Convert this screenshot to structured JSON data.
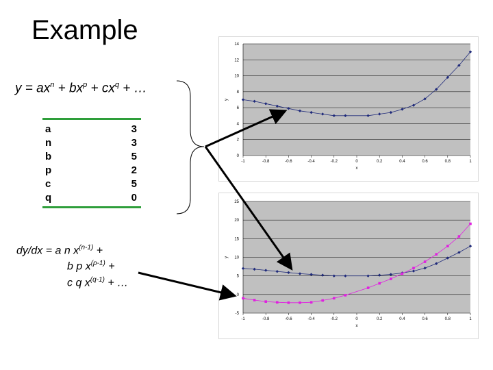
{
  "slide": {
    "title": "Example",
    "formula_parts": [
      "y = ax",
      "n",
      " + bx",
      "p",
      " + cx",
      "q",
      " + …"
    ],
    "params": [
      {
        "name": "a",
        "value": "3"
      },
      {
        "name": "n",
        "value": "3"
      },
      {
        "name": "b",
        "value": "5"
      },
      {
        "name": "p",
        "value": "2"
      },
      {
        "name": "c",
        "value": "5"
      },
      {
        "name": "q",
        "value": "0"
      }
    ],
    "derivative": {
      "line1": [
        "dy/dx = ",
        "a n x",
        "(n-1)",
        " +"
      ],
      "line2": [
        "b p x",
        "(p-1)",
        " +"
      ],
      "line3": [
        "c q x",
        "(q-1)",
        " + …"
      ]
    }
  },
  "chart_data": [
    {
      "type": "line",
      "title": "",
      "xlabel": "x",
      "ylabel": "y",
      "xlim": [
        -1,
        1
      ],
      "ylim": [
        0,
        14
      ],
      "xticks": [
        -1,
        -0.8,
        -0.6,
        -0.4,
        -0.2,
        0,
        0.2,
        0.4,
        0.6,
        0.8,
        1
      ],
      "yticks": [
        0,
        2,
        4,
        6,
        8,
        10,
        12,
        14
      ],
      "grid": true,
      "legend": "none",
      "plot_bg": "#c0c0c0",
      "x": [
        -1,
        -0.9,
        -0.8,
        -0.7,
        -0.6,
        -0.5,
        -0.4,
        -0.3,
        -0.2,
        -0.1,
        0.1,
        0.2,
        0.3,
        0.4,
        0.5,
        0.6,
        0.7,
        0.8,
        0.9,
        1
      ],
      "series": [
        {
          "color": "#1f2a7a",
          "marker": "diamond",
          "values": [
            7,
            6.8,
            6.5,
            6.2,
            5.9,
            5.6,
            5.4,
            5.2,
            5.0,
            5.0,
            5.0,
            5.2,
            5.4,
            5.8,
            6.3,
            7.1,
            8.3,
            9.8,
            11.3,
            13
          ]
        }
      ]
    },
    {
      "type": "line",
      "title": "",
      "xlabel": "x",
      "ylabel": "y",
      "xlim": [
        -1,
        1
      ],
      "ylim": [
        -5,
        25
      ],
      "xticks": [
        -1,
        -0.8,
        -0.6,
        -0.4,
        -0.2,
        0,
        0.2,
        0.4,
        0.6,
        0.8,
        1
      ],
      "yticks": [
        -5,
        0,
        5,
        10,
        15,
        20,
        25
      ],
      "grid": true,
      "legend": "none",
      "plot_bg": "#c0c0c0",
      "x": [
        -1,
        -0.9,
        -0.8,
        -0.7,
        -0.6,
        -0.5,
        -0.4,
        -0.3,
        -0.2,
        -0.1,
        0.1,
        0.2,
        0.3,
        0.4,
        0.5,
        0.6,
        0.7,
        0.8,
        0.9,
        1
      ],
      "series": [
        {
          "color": "#1f2a7a",
          "marker": "diamond",
          "values": [
            7,
            6.8,
            6.5,
            6.2,
            5.9,
            5.6,
            5.4,
            5.2,
            5.0,
            5.0,
            5.0,
            5.2,
            5.4,
            5.8,
            6.3,
            7.1,
            8.3,
            9.8,
            11.3,
            13
          ]
        },
        {
          "color": "#e020e0",
          "marker": "square",
          "values": [
            -1,
            -1.5,
            -1.9,
            -2.1,
            -2.2,
            -2.2,
            -2.1,
            -1.6,
            -1.0,
            -0.2,
            1.8,
            3.0,
            4.2,
            5.6,
            7.1,
            8.8,
            10.8,
            13.0,
            15.6,
            19
          ]
        }
      ]
    }
  ]
}
